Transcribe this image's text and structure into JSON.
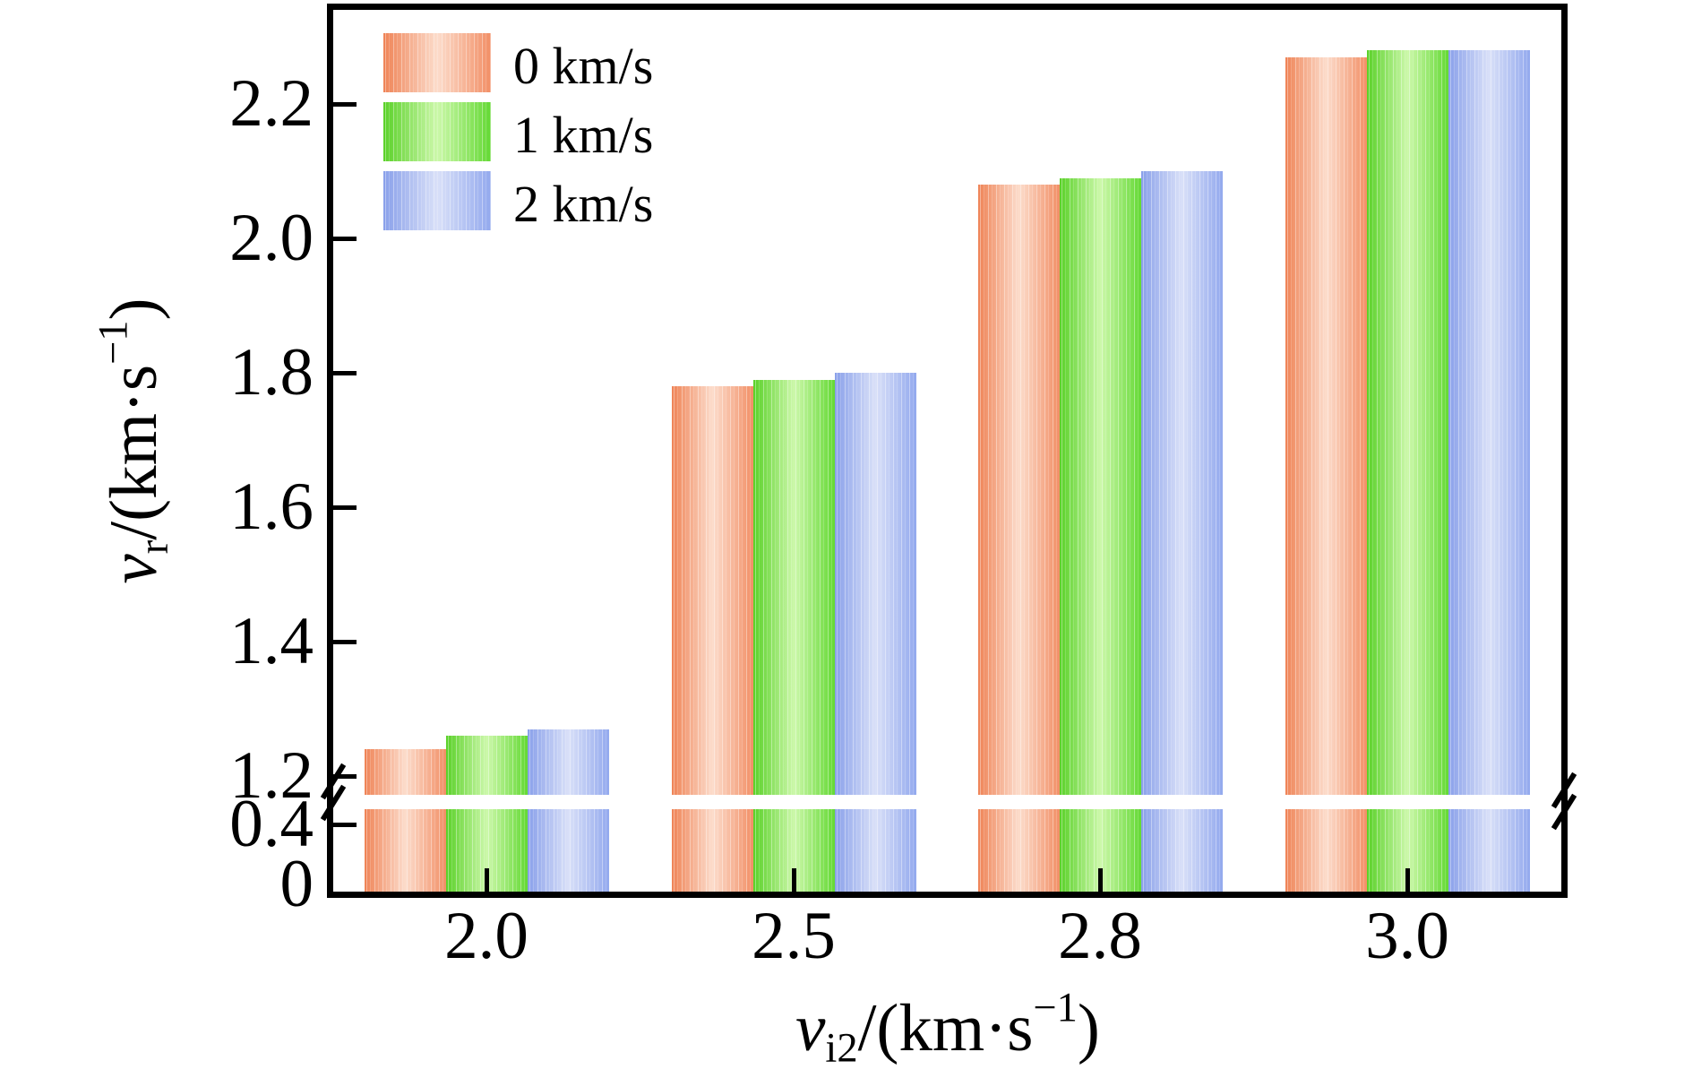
{
  "chart_data": {
    "type": "bar",
    "title": "",
    "categories": [
      "2.0",
      "2.5",
      "2.8",
      "3.0"
    ],
    "series": [
      {
        "name": "0 km/s",
        "values": [
          1.24,
          1.78,
          2.08,
          2.27
        ],
        "edge_color": "#ef8356",
        "mid_color": "#fcdccb",
        "edge_color2": "#f28f66"
      },
      {
        "name": "1 km/s",
        "values": [
          1.26,
          1.79,
          2.09,
          2.28
        ],
        "edge_color": "#5ad128",
        "mid_color": "#ccf8aa",
        "edge_color2": "#64d934"
      },
      {
        "name": "2 km/s",
        "values": [
          1.27,
          1.8,
          2.1,
          2.28
        ],
        "edge_color": "#89a0ea",
        "mid_color": "#d9e0f8",
        "edge_color2": "#93a9ee"
      }
    ],
    "x_axis": {
      "tick_labels": [
        "2.0",
        "2.5",
        "2.8",
        "3.0"
      ],
      "label_parts": {
        "variable": "v",
        "subscript": "i2",
        "unit_open": "/(km·s",
        "exponent": "−1",
        "unit_close": ")"
      }
    },
    "y_axis": {
      "ticks_upper_labels": [
        "2.2",
        "2.0",
        "1.8",
        "1.6",
        "1.4",
        "1.2"
      ],
      "ticks_upper_values": [
        2.2,
        2.0,
        1.8,
        1.6,
        1.4,
        1.2
      ],
      "ticks_lower_labels": [
        "0.4",
        "0"
      ],
      "ticks_lower_values": [
        0.4,
        0
      ],
      "axis_break": {
        "between": [
          0.55,
          1.14
        ],
        "upper_range": [
          1.14,
          2.35
        ],
        "lower_range": [
          0,
          0.55
        ]
      },
      "label_parts": {
        "variable": "v",
        "subscript": "r",
        "unit_open": "/(km·s",
        "exponent": "−1",
        "unit_close": ")"
      }
    },
    "legend": {
      "position": "top-left",
      "entries": [
        "0 km/s",
        "1 km/s",
        "2 km/s"
      ]
    },
    "grid": false,
    "frame_color": "#000000",
    "background_color": "#ffffff"
  }
}
